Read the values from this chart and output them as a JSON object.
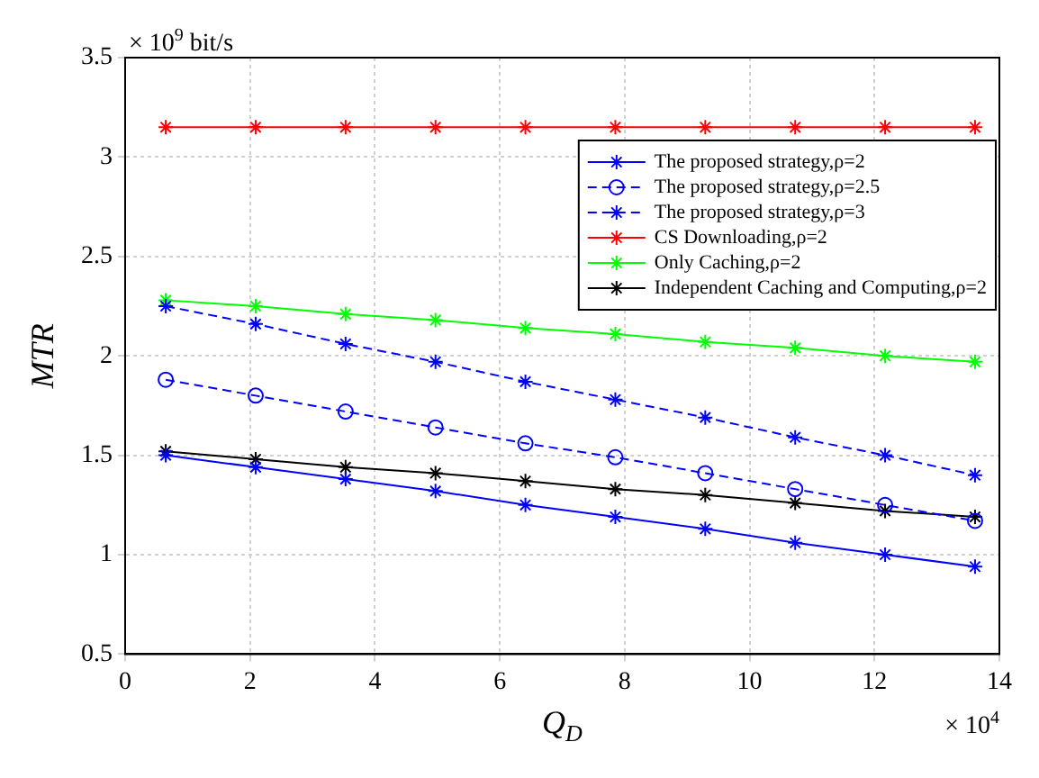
{
  "chart_data": {
    "type": "line",
    "xlabel": "Q$_{D}$",
    "ylabel": "MTR",
    "annotations": [
      "× 10$^{9}$ bit/s",
      "× 10$^{4}$"
    ],
    "x": [
      0.65,
      2.09,
      3.53,
      4.97,
      6.41,
      7.85,
      9.29,
      10.73,
      12.17,
      13.61
    ],
    "xlim": [
      0,
      14
    ],
    "xticks": [
      0,
      2,
      4,
      6,
      8,
      10,
      12,
      14
    ],
    "ylim": [
      0.5,
      3.5
    ],
    "yticks": [
      0.5,
      1,
      1.5,
      2,
      2.5,
      3,
      3.5
    ],
    "grid": true,
    "legend": "top right",
    "series": [
      {
        "name": "The proposed strategy,ρ=2",
        "color": "#0000ff",
        "marker": "cross",
        "line_style": "solid",
        "values": [
          1.5,
          1.44,
          1.38,
          1.32,
          1.25,
          1.19,
          1.13,
          1.06,
          1.0,
          0.94
        ]
      },
      {
        "name": "The proposed strategy,ρ=2.5",
        "color": "#0000ff",
        "marker": "circle",
        "line_style": "dashed",
        "values": [
          1.88,
          1.8,
          1.72,
          1.64,
          1.56,
          1.49,
          1.41,
          1.33,
          1.25,
          1.17
        ]
      },
      {
        "name": "The proposed strategy,ρ=3",
        "color": "#0000ff",
        "marker": "cross",
        "line_style": "dashed",
        "values": [
          2.25,
          2.16,
          2.06,
          1.97,
          1.87,
          1.78,
          1.69,
          1.59,
          1.5,
          1.4
        ]
      },
      {
        "name": "CS Downloading,ρ=2",
        "color": "#ff0000",
        "marker": "cross",
        "line_style": "solid",
        "values": [
          3.15,
          3.15,
          3.15,
          3.15,
          3.15,
          3.15,
          3.15,
          3.15,
          3.15,
          3.15
        ]
      },
      {
        "name": "Only Caching,ρ=2",
        "color": "#00ff00",
        "marker": "cross",
        "line_style": "solid",
        "values": [
          2.28,
          2.25,
          2.21,
          2.18,
          2.14,
          2.11,
          2.07,
          2.04,
          2.0,
          1.97
        ]
      },
      {
        "name": "Independent Caching and Computing,ρ=2",
        "color": "#000000",
        "marker": "cross",
        "line_style": "solid",
        "values": [
          1.52,
          1.48,
          1.44,
          1.41,
          1.37,
          1.33,
          1.3,
          1.26,
          1.22,
          1.19
        ]
      }
    ]
  }
}
